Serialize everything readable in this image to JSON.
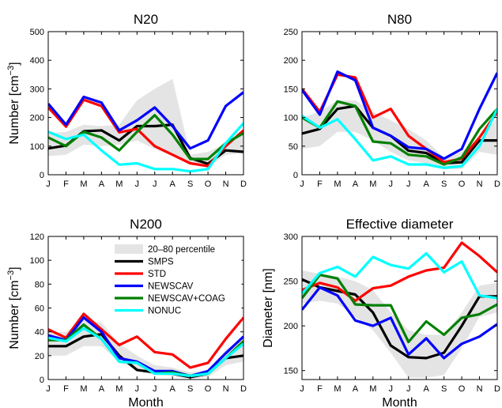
{
  "chart_data": [
    {
      "type": "line",
      "title": "N20",
      "xlabel": "",
      "ylabel": "Number [cm⁻³]",
      "ylim": [
        0,
        500
      ],
      "yticks": [
        0,
        100,
        200,
        300,
        400,
        500
      ],
      "categories": [
        "J",
        "F",
        "M",
        "A",
        "M",
        "J",
        "J",
        "A",
        "S",
        "O",
        "N",
        "D"
      ],
      "band": {
        "name": "20–80 percentile",
        "lower": [
          65,
          70,
          105,
          100,
          105,
          120,
          90,
          65,
          35,
          25,
          70,
          75
        ],
        "upper": [
          145,
          150,
          175,
          170,
          175,
          260,
          300,
          335,
          70,
          80,
          110,
          150
        ]
      },
      "series": [
        {
          "name": "SMPS",
          "values": [
            92,
            102,
            152,
            155,
            120,
            170,
            170,
            175,
            58,
            38,
            85,
            80
          ]
        },
        {
          "name": "STD",
          "values": [
            235,
            168,
            262,
            240,
            148,
            160,
            100,
            70,
            40,
            30,
            100,
            155
          ]
        },
        {
          "name": "NEWSCAV",
          "values": [
            248,
            175,
            272,
            252,
            155,
            190,
            235,
            170,
            92,
            120,
            240,
            288
          ]
        },
        {
          "name": "NEWSCAV+COAG",
          "values": [
            130,
            100,
            150,
            130,
            85,
            150,
            208,
            140,
            55,
            55,
            110,
            145
          ]
        },
        {
          "name": "NONUC",
          "values": [
            150,
            125,
            140,
            85,
            35,
            40,
            20,
            20,
            12,
            20,
            110,
            180
          ]
        }
      ]
    },
    {
      "type": "line",
      "title": "N80",
      "xlabel": "",
      "ylabel": "",
      "ylim": [
        0,
        250
      ],
      "yticks": [
        0,
        50,
        100,
        150,
        200,
        250
      ],
      "categories": [
        "J",
        "F",
        "M",
        "A",
        "M",
        "J",
        "J",
        "A",
        "S",
        "O",
        "N",
        "D"
      ],
      "band": {
        "name": "20–80 percentile",
        "lower": [
          45,
          50,
          75,
          75,
          60,
          40,
          25,
          20,
          10,
          10,
          40,
          35
        ],
        "upper": [
          100,
          110,
          130,
          130,
          110,
          95,
          80,
          60,
          30,
          40,
          65,
          100
        ]
      },
      "series": [
        {
          "name": "SMPS",
          "values": [
            72,
            80,
            115,
            120,
            82,
            68,
            42,
            38,
            20,
            22,
            60,
            60
          ]
        },
        {
          "name": "STD",
          "values": [
            150,
            110,
            175,
            170,
            100,
            115,
            68,
            45,
            22,
            28,
            65,
            110
          ]
        },
        {
          "name": "NEWSCAV",
          "values": [
            148,
            105,
            180,
            165,
            82,
            68,
            48,
            45,
            28,
            45,
            115,
            178
          ]
        },
        {
          "name": "NEWSCAV+COAG",
          "values": [
            100,
            82,
            128,
            120,
            58,
            55,
            35,
            32,
            18,
            30,
            80,
            115
          ]
        },
        {
          "name": "NONUC",
          "values": [
            103,
            82,
            97,
            62,
            25,
            32,
            18,
            18,
            12,
            15,
            50,
            115
          ]
        }
      ]
    },
    {
      "type": "line",
      "title": "N200",
      "xlabel": "Month",
      "ylabel": "Number [cm⁻³]",
      "ylim": [
        0,
        120
      ],
      "yticks": [
        0,
        20,
        40,
        60,
        80,
        100,
        120
      ],
      "categories": [
        "J",
        "F",
        "M",
        "A",
        "M",
        "J",
        "J",
        "A",
        "S",
        "O",
        "N",
        "D"
      ],
      "band": {
        "name": "20–80 percentile",
        "lower": [
          20,
          20,
          28,
          28,
          15,
          8,
          4,
          3,
          1,
          2,
          12,
          15
        ],
        "upper": [
          40,
          40,
          50,
          48,
          30,
          20,
          12,
          10,
          6,
          8,
          25,
          35
        ]
      },
      "series": [
        {
          "name": "SMPS",
          "values": [
            28,
            28,
            36,
            38,
            20,
            8,
            6,
            5,
            2,
            5,
            18,
            20
          ]
        },
        {
          "name": "STD",
          "values": [
            42,
            35,
            55,
            42,
            29,
            36,
            23,
            21,
            10,
            14,
            34,
            52
          ]
        },
        {
          "name": "NEWSCAV",
          "values": [
            37,
            33,
            52,
            40,
            18,
            15,
            7,
            7,
            3,
            7,
            22,
            36
          ]
        },
        {
          "name": "NEWSCAV+COAG",
          "values": [
            33,
            33,
            46,
            34,
            15,
            14,
            5,
            6,
            3,
            5,
            18,
            32
          ]
        },
        {
          "name": "NONUC",
          "values": [
            35,
            32,
            43,
            34,
            15,
            14,
            5,
            5,
            3,
            5,
            18,
            30
          ]
        }
      ]
    },
    {
      "type": "line",
      "title": "Effective diameter",
      "xlabel": "Month",
      "ylabel": "Diameter [nm]",
      "ylim": [
        140,
        300
      ],
      "yticks": [
        150,
        200,
        250,
        300
      ],
      "categories": [
        "J",
        "F",
        "M",
        "A",
        "M",
        "J",
        "J",
        "A",
        "S",
        "O",
        "N",
        "D"
      ],
      "band": {
        "name": "20–80 percentile",
        "lower": [
          225,
          228,
          225,
          210,
          195,
          170,
          142,
          142,
          145,
          175,
          210,
          215
        ],
        "upper": [
          262,
          258,
          255,
          250,
          240,
          215,
          195,
          190,
          190,
          215,
          245,
          248
        ]
      },
      "series": [
        {
          "name": "SMPS",
          "values": [
            252,
            243,
            239,
            235,
            215,
            178,
            165,
            164,
            170,
            200,
            233,
            233
          ]
        },
        {
          "name": "STD",
          "values": [
            240,
            248,
            243,
            228,
            242,
            245,
            255,
            262,
            265,
            293,
            278,
            260
          ]
        },
        {
          "name": "NEWSCAV",
          "values": [
            218,
            243,
            234,
            206,
            200,
            209,
            168,
            186,
            164,
            180,
            188,
            202
          ]
        },
        {
          "name": "NEWSCAV+COAG",
          "values": [
            231,
            257,
            253,
            224,
            223,
            223,
            182,
            205,
            190,
            209,
            213,
            224
          ]
        },
        {
          "name": "NONUC",
          "values": [
            236,
            259,
            266,
            255,
            277,
            268,
            264,
            281,
            260,
            272,
            234,
            231
          ]
        }
      ]
    }
  ],
  "legend": {
    "placement": "inside N200 panel, upper-right",
    "items": [
      "20–80 percentile",
      "SMPS",
      "STD",
      "NEWSCAV",
      "NEWSCAV+COAG",
      "NONUC"
    ]
  },
  "colors": {
    "band": "#e4e4e4",
    "SMPS": "#000000",
    "STD": "#ff0000",
    "NEWSCAV": "#0000ff",
    "NEWSCAV+COAG": "#008000",
    "NONUC": "#00ffff"
  }
}
